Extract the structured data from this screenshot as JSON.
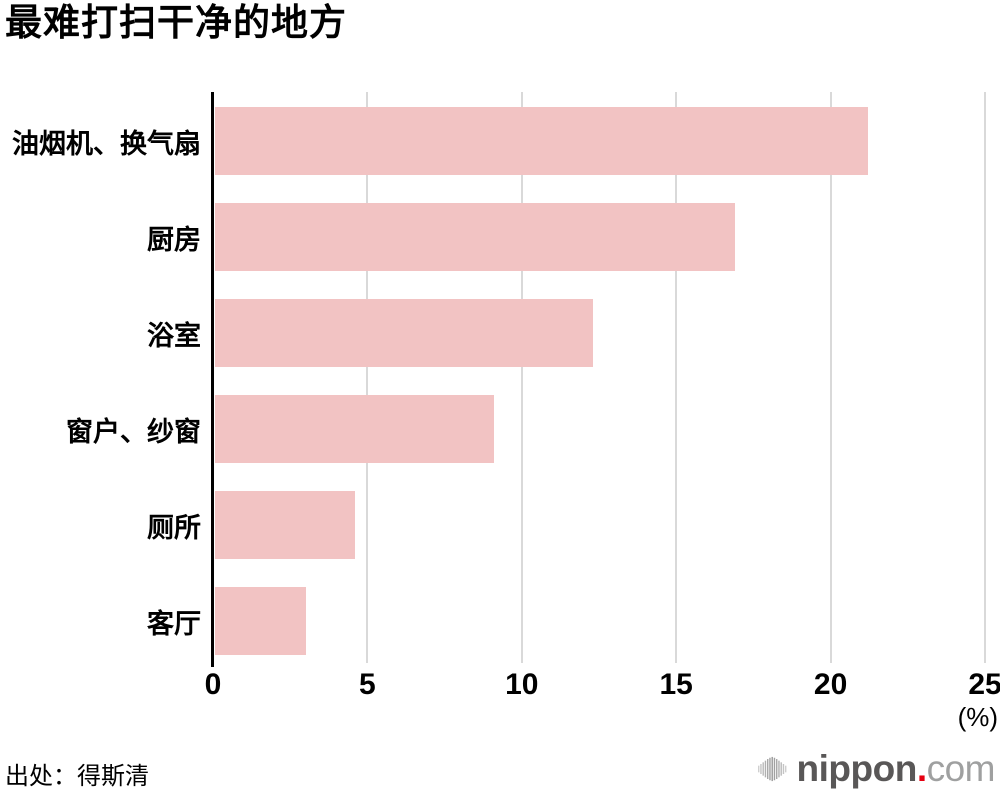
{
  "title": "最难打扫干净的地方",
  "chart_data": {
    "type": "bar",
    "orientation": "horizontal",
    "title": "最难打扫干净的地方",
    "categories": [
      "油烟机、换气扇",
      "厨房",
      "浴室",
      "窗户、纱窗",
      "厕所",
      "客厅"
    ],
    "values": [
      21.2,
      16.9,
      12.3,
      9.1,
      4.6,
      3.0
    ],
    "xlabel": "(%)",
    "ylabel": "",
    "xlim": [
      0,
      25
    ],
    "xticks": [
      0,
      5,
      10,
      15,
      20,
      25
    ],
    "grid": true,
    "legend": false,
    "bar_color": "#f2c3c3",
    "gridline_color": "#d9d9d9",
    "axis_color": "#000000"
  },
  "footer": {
    "source": "出处：得斯清",
    "brand": {
      "icon": "soundwave-bars-icon",
      "name": "nippon",
      "dot": ".",
      "tld": "com"
    }
  }
}
